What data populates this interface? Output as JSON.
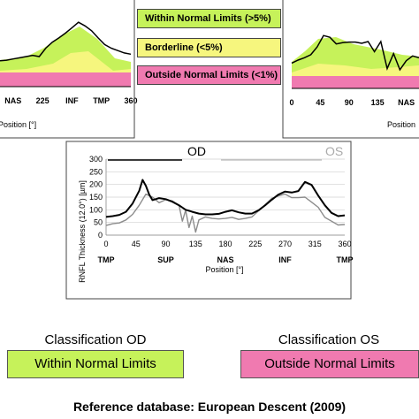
{
  "legend": {
    "within": {
      "label": "Within Normal Limits (>5%)",
      "color": "#c6f25a"
    },
    "borderline": {
      "label": "Borderline (<5%)",
      "color": "#f6f67e"
    },
    "outside": {
      "label": "Outside Normal Limits (<1%)",
      "color": "#f07ab0"
    }
  },
  "classification": {
    "od_title": "Classification OD",
    "od_value": "Within Normal Limits",
    "od_color": "#c6f25a",
    "os_title": "Classification OS",
    "os_value": "Outside Normal Limits",
    "os_color": "#f07ab0"
  },
  "reference_db": "Reference database: European Descent (2009)",
  "chart_data": [
    {
      "type": "line",
      "panel": "OD",
      "x_tick_values": [
        180,
        225,
        270,
        315,
        360
      ],
      "x_tick_labels": [
        "NAS",
        "225",
        "INF",
        "TMP",
        "360"
      ],
      "xlabel": "Position [°]",
      "xlim": [
        160,
        360
      ],
      "series": [
        {
          "x": [
            160,
            170,
            180,
            190,
            200,
            210,
            220,
            230,
            240,
            250,
            260,
            270,
            280,
            290,
            300,
            310,
            320,
            330,
            340,
            350,
            360
          ],
          "values": [
            86,
            88,
            92,
            96,
            100,
            104,
            100,
            128,
            148,
            162,
            178,
            196,
            214,
            202,
            186,
            162,
            140,
            128,
            120,
            112,
            108
          ]
        }
      ]
    },
    {
      "type": "line",
      "panel": "OS",
      "x_tick_values": [
        0,
        45,
        90,
        135,
        180
      ],
      "x_tick_labels": [
        "0",
        "45",
        "90",
        "135",
        "NAS"
      ],
      "xlabel": "Position",
      "xlim": [
        0,
        200
      ],
      "series": [
        {
          "x": [
            0,
            10,
            20,
            30,
            40,
            50,
            60,
            70,
            80,
            90,
            100,
            110,
            120,
            130,
            140,
            150,
            160,
            170,
            180,
            190,
            200
          ],
          "values": [
            84,
            94,
            102,
            112,
            138,
            176,
            170,
            148,
            152,
            154,
            154,
            150,
            156,
            122,
            156,
            66,
            116,
            62,
            92,
            108,
            102
          ]
        }
      ]
    },
    {
      "type": "line",
      "panel": "main",
      "legend": [
        "OD",
        "OS"
      ],
      "xlabel": "Position [°]",
      "ylabel": "RNFL Thickness (12.0°) [µm]",
      "xlim": [
        0,
        360
      ],
      "ylim": [
        0,
        300
      ],
      "y_ticks": [
        0,
        50,
        100,
        150,
        200,
        250,
        300
      ],
      "x_tick_values": [
        0,
        45,
        90,
        135,
        180,
        225,
        270,
        315,
        360
      ],
      "x_tick_labels": [
        "0",
        "45",
        "90",
        "135",
        "180",
        "225",
        "270",
        "315",
        "360"
      ],
      "x_region_values": [
        0,
        90,
        180,
        270,
        360
      ],
      "x_region_labels": [
        "TMP",
        "SUP",
        "NAS",
        "INF",
        "TMP"
      ],
      "series": [
        {
          "name": "OD",
          "color": "#000000",
          "x": [
            0,
            10,
            20,
            30,
            40,
            50,
            55,
            60,
            65,
            70,
            80,
            90,
            100,
            110,
            120,
            130,
            140,
            150,
            160,
            170,
            180,
            190,
            200,
            210,
            220,
            230,
            240,
            250,
            260,
            270,
            280,
            290,
            300,
            310,
            320,
            330,
            340,
            350,
            360
          ],
          "values": [
            72,
            75,
            80,
            92,
            125,
            175,
            218,
            195,
            160,
            138,
            146,
            142,
            132,
            118,
            100,
            92,
            85,
            82,
            82,
            84,
            92,
            98,
            90,
            85,
            85,
            98,
            118,
            140,
            160,
            172,
            168,
            174,
            210,
            198,
            156,
            118,
            88,
            75,
            78
          ]
        },
        {
          "name": "OS",
          "color": "#8c8c8c",
          "x": [
            0,
            10,
            20,
            30,
            40,
            50,
            60,
            70,
            80,
            90,
            100,
            110,
            115,
            120,
            125,
            130,
            135,
            140,
            150,
            160,
            170,
            180,
            190,
            200,
            210,
            220,
            230,
            240,
            250,
            260,
            270,
            280,
            290,
            300,
            310,
            320,
            330,
            340,
            350,
            360
          ],
          "values": [
            38,
            45,
            48,
            60,
            82,
            118,
            162,
            150,
            128,
            140,
            135,
            118,
            55,
            98,
            30,
            75,
            12,
            60,
            72,
            66,
            64,
            66,
            70,
            62,
            66,
            72,
            96,
            120,
            145,
            155,
            162,
            148,
            148,
            150,
            130,
            110,
            70,
            55,
            40,
            42
          ]
        }
      ]
    }
  ]
}
